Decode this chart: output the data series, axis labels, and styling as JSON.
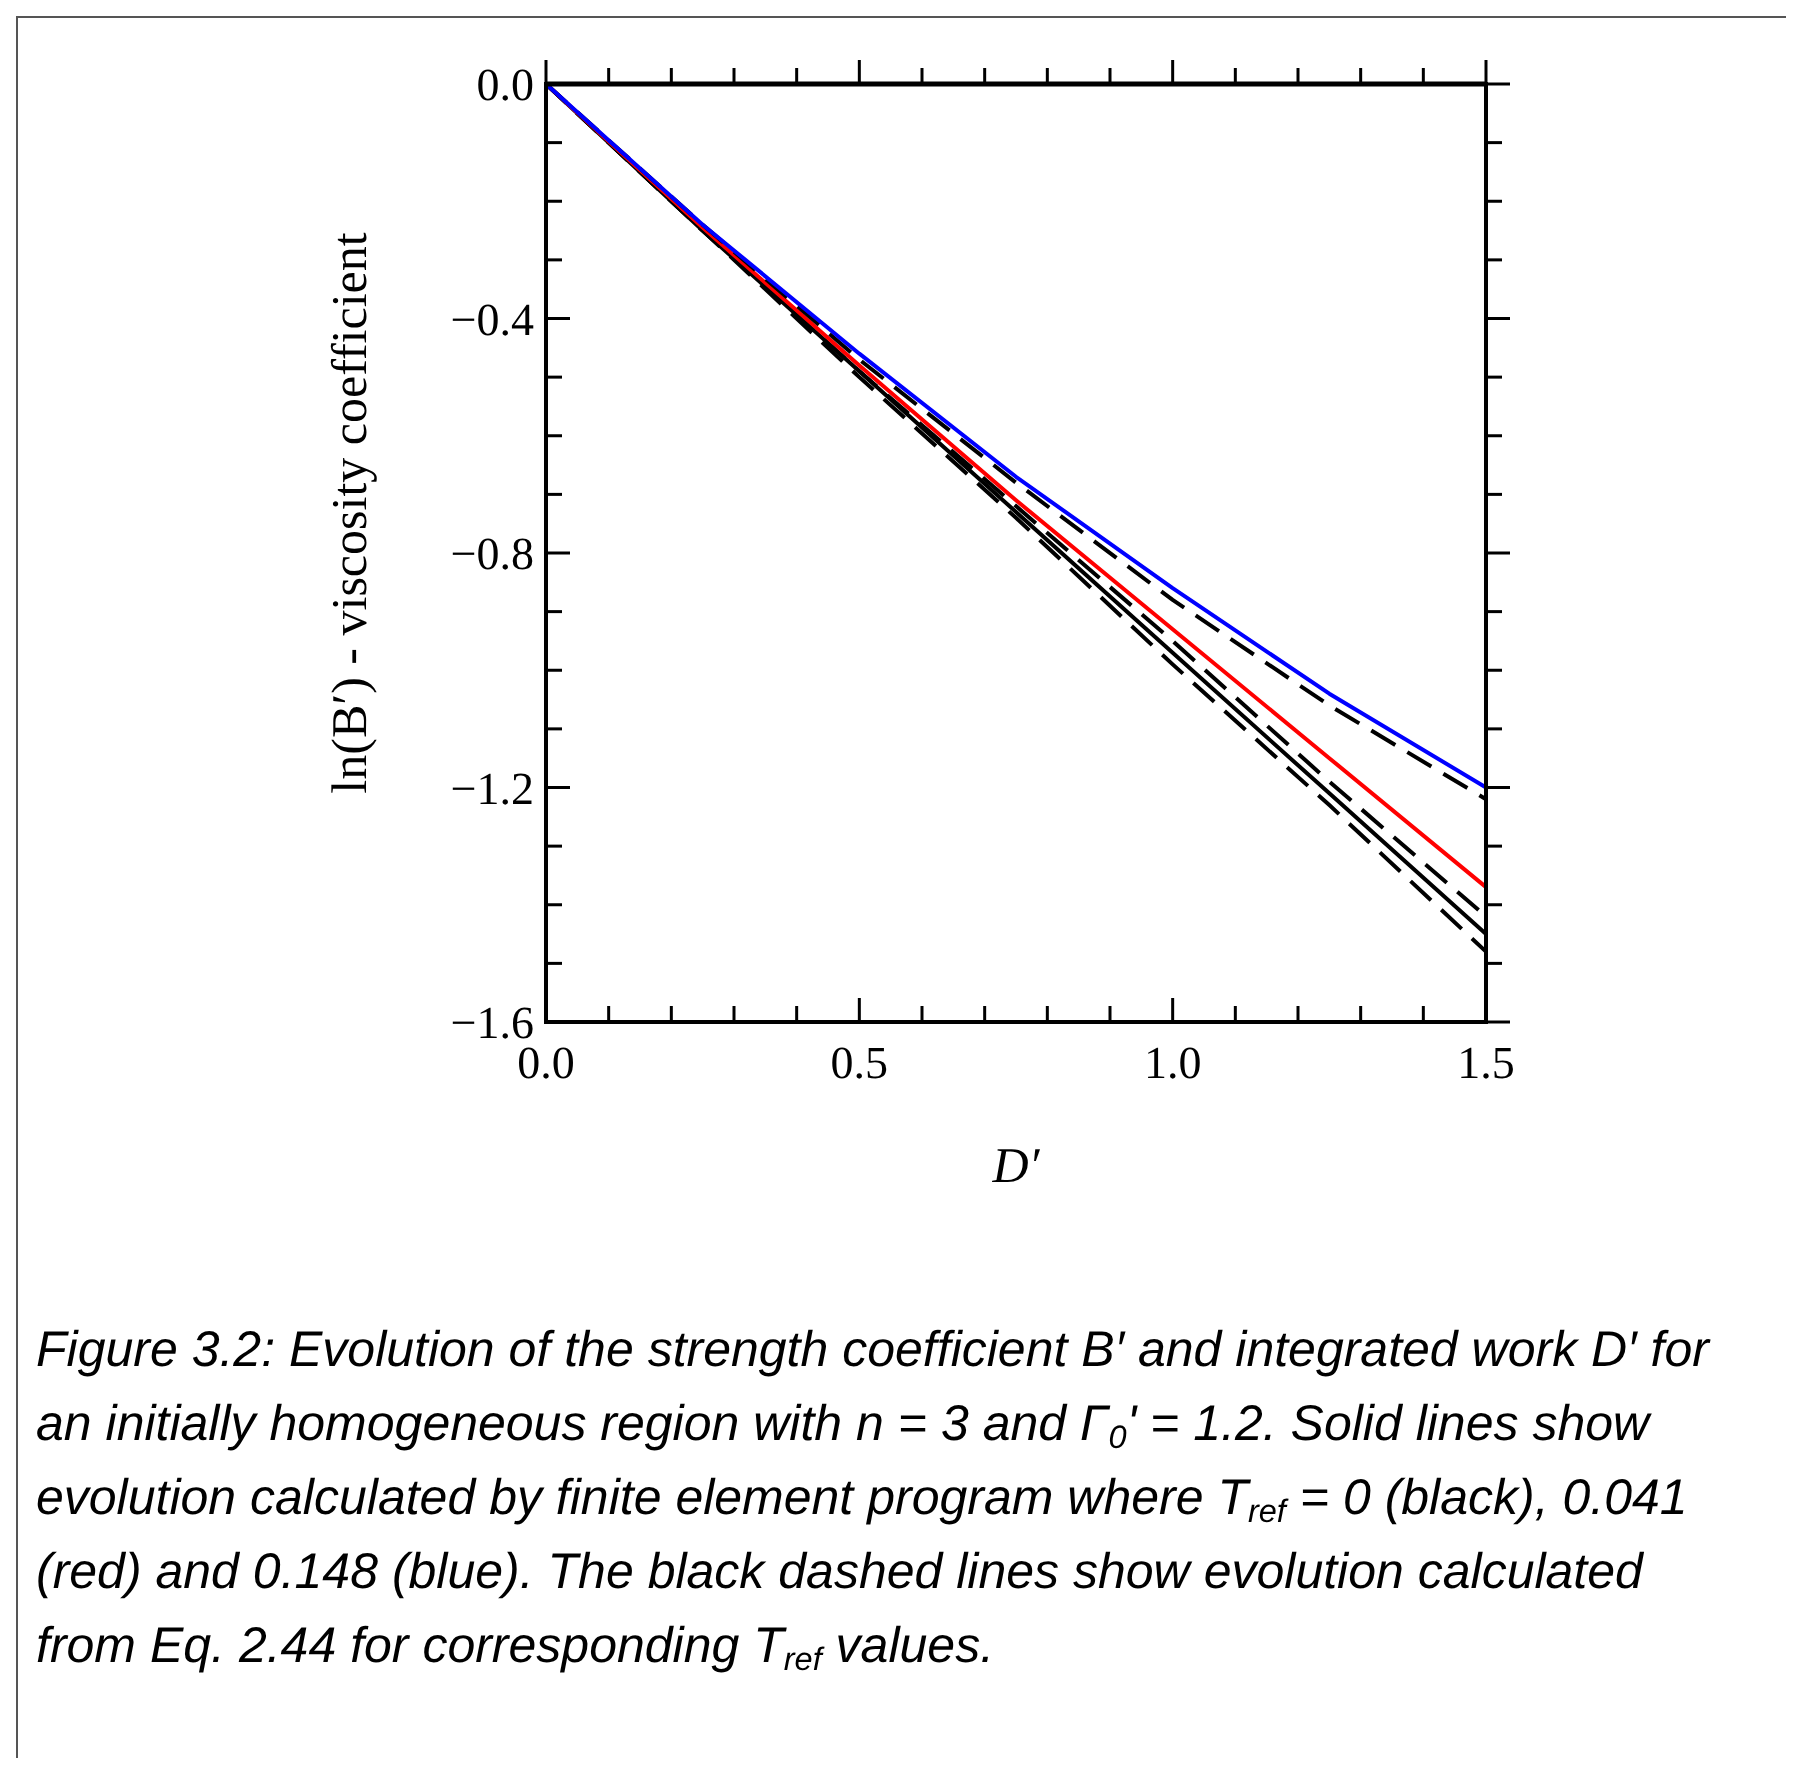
{
  "chart_data": {
    "type": "line",
    "xlabel": "D′",
    "ylabel": "ln(B′) - viscosity coefficient",
    "x": [
      0,
      0.25,
      0.5,
      0.75,
      1.0,
      1.25,
      1.5
    ],
    "xlim": [
      0,
      1.5
    ],
    "xticks": [
      {
        "value": 0,
        "label": "0.0"
      },
      {
        "value": 0.1,
        "label": null
      },
      {
        "value": 0.2,
        "label": null
      },
      {
        "value": 0.3,
        "label": null
      },
      {
        "value": 0.4,
        "label": null
      },
      {
        "value": 0.5,
        "label": "0.5"
      },
      {
        "value": 0.6,
        "label": null
      },
      {
        "value": 0.7,
        "label": null
      },
      {
        "value": 0.8,
        "label": null
      },
      {
        "value": 0.9,
        "label": null
      },
      {
        "value": 1.0,
        "label": "1.0"
      },
      {
        "value": 1.1,
        "label": null
      },
      {
        "value": 1.2,
        "label": null
      },
      {
        "value": 1.3,
        "label": null
      },
      {
        "value": 1.4,
        "label": null
      },
      {
        "value": 1.5,
        "label": "1.5"
      }
    ],
    "ylim": [
      -1.6,
      0
    ],
    "yticks": [
      {
        "value": 0,
        "label": "0.0"
      },
      {
        "value": -0.1,
        "label": null
      },
      {
        "value": -0.2,
        "label": null
      },
      {
        "value": -0.3,
        "label": null
      },
      {
        "value": -0.4,
        "label": "−0.4"
      },
      {
        "value": -0.5,
        "label": null
      },
      {
        "value": -0.6,
        "label": null
      },
      {
        "value": -0.7,
        "label": null
      },
      {
        "value": -0.8,
        "label": "−0.8"
      },
      {
        "value": -0.9,
        "label": null
      },
      {
        "value": -1.0,
        "label": null
      },
      {
        "value": -1.1,
        "label": null
      },
      {
        "value": -1.2,
        "label": "−1.2"
      },
      {
        "value": -1.3,
        "label": null
      },
      {
        "value": -1.4,
        "label": null
      },
      {
        "value": -1.5,
        "label": null
      },
      {
        "value": -1.6,
        "label": "−1.6"
      }
    ],
    "grid": false,
    "marker": "none",
    "series": [
      {
        "color": "#000000",
        "line_style": "dashed",
        "values": [
          0,
          -0.25,
          -0.5,
          -0.74,
          -0.99,
          -1.23,
          -1.48
        ]
      },
      {
        "color": "#000000",
        "line_style": "solid",
        "values": [
          0,
          -0.25,
          -0.49,
          -0.73,
          -0.97,
          -1.21,
          -1.45
        ]
      },
      {
        "color": "#000000",
        "line_style": "dashed",
        "values": [
          0,
          -0.25,
          -0.49,
          -0.72,
          -0.95,
          -1.19,
          -1.42
        ]
      },
      {
        "color": "#ff0000",
        "line_style": "solid",
        "values": [
          0,
          -0.245,
          -0.48,
          -0.71,
          -0.93,
          -1.15,
          -1.37
        ]
      },
      {
        "color": "#000000",
        "line_style": "dashed",
        "values": [
          0,
          -0.24,
          -0.47,
          -0.68,
          -0.88,
          -1.06,
          -1.22
        ]
      },
      {
        "color": "#0000ff",
        "line_style": "solid",
        "values": [
          0,
          -0.24,
          -0.46,
          -0.67,
          -0.86,
          -1.04,
          -1.2
        ]
      }
    ],
    "annotations": [
      "Figure 3.2: Evolution of the strength coefficient B′ and integrated work D′ for an initially homogeneous region with n = 3 and Γ$_{0}$' = 1.2. Solid lines show evolution calculated by finite element program where T$_{ref}$ = 0 (black), 0.041 (red) and 0.148 (blue). The black dashed lines show evolution calculated from Eq. 2.44 for corresponding T$_{ref}$ values."
    ]
  }
}
